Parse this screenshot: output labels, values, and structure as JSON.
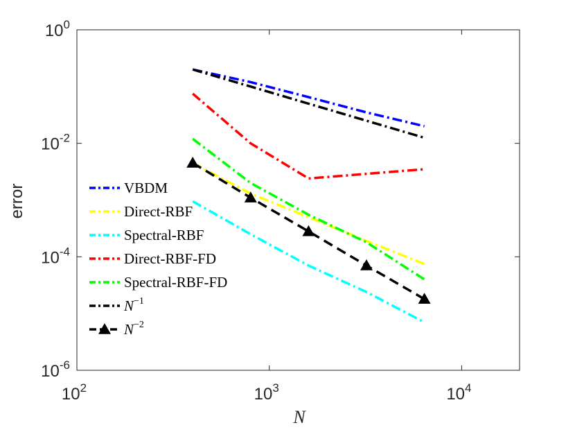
{
  "chart_data": {
    "type": "line",
    "xscale": "log",
    "yscale": "log",
    "xlabel": "N",
    "ylabel": "error",
    "xlim": [
      100,
      20000
    ],
    "ylim": [
      1e-06,
      1
    ],
    "x_ticks": [
      {
        "value": 100,
        "base": "10",
        "exp": "2"
      },
      {
        "value": 1000,
        "base": "10",
        "exp": "3"
      },
      {
        "value": 10000,
        "base": "10",
        "exp": "4"
      }
    ],
    "y_ticks": [
      {
        "value": 1,
        "base": "10",
        "exp": "0"
      },
      {
        "value": 0.01,
        "base": "10",
        "exp": "-2"
      },
      {
        "value": 0.0001,
        "base": "10",
        "exp": "-4"
      },
      {
        "value": 1e-06,
        "base": "10",
        "exp": "-6"
      }
    ],
    "x": [
      400,
      800,
      1600,
      3200,
      6400
    ],
    "series": [
      {
        "name": "VBDM",
        "legend_base": "VBDM",
        "legend_sup": "",
        "color": "#0000ff",
        "dash": "dashdot",
        "marker": "none",
        "values": [
          0.2,
          0.12,
          0.065,
          0.035,
          0.02
        ]
      },
      {
        "name": "Direct-RBF",
        "legend_base": "Direct-RBF",
        "legend_sup": "",
        "color": "#ffff00",
        "dash": "dashdot",
        "marker": "none",
        "values": [
          0.0045,
          0.0013,
          0.0005,
          0.00019,
          7.5e-05
        ]
      },
      {
        "name": "Spectral-RBF",
        "legend_base": "Spectral-RBF",
        "legend_sup": "",
        "color": "#00ffff",
        "dash": "dashdot",
        "marker": "none",
        "values": [
          0.00095,
          0.00025,
          7e-05,
          2.4e-05,
          7e-06
        ]
      },
      {
        "name": "Direct-RBF-FD",
        "legend_base": "Direct-RBF-FD",
        "legend_sup": "",
        "color": "#ff0000",
        "dash": "dashdot",
        "marker": "none",
        "values": [
          0.075,
          0.01,
          0.0024,
          0.0029,
          0.0035
        ]
      },
      {
        "name": "Spectral-RBF-FD",
        "legend_base": "Spectral-RBF-FD",
        "legend_sup": "",
        "color": "#00ff00",
        "dash": "dashdot",
        "marker": "none",
        "values": [
          0.012,
          0.002,
          0.00055,
          0.00018,
          4e-05
        ]
      },
      {
        "name": "N^-1",
        "legend_base": "N",
        "legend_sup": "−1",
        "color": "#000000",
        "dash": "dashdot",
        "marker": "none",
        "values": [
          0.2,
          0.1,
          0.05,
          0.025,
          0.0125
        ]
      },
      {
        "name": "N^-2",
        "legend_base": "N",
        "legend_sup": "−2",
        "color": "#000000",
        "dash": "dashed",
        "marker": "triangle",
        "values": [
          0.0045,
          0.0011,
          0.00028,
          7e-05,
          1.8e-05
        ]
      }
    ]
  }
}
